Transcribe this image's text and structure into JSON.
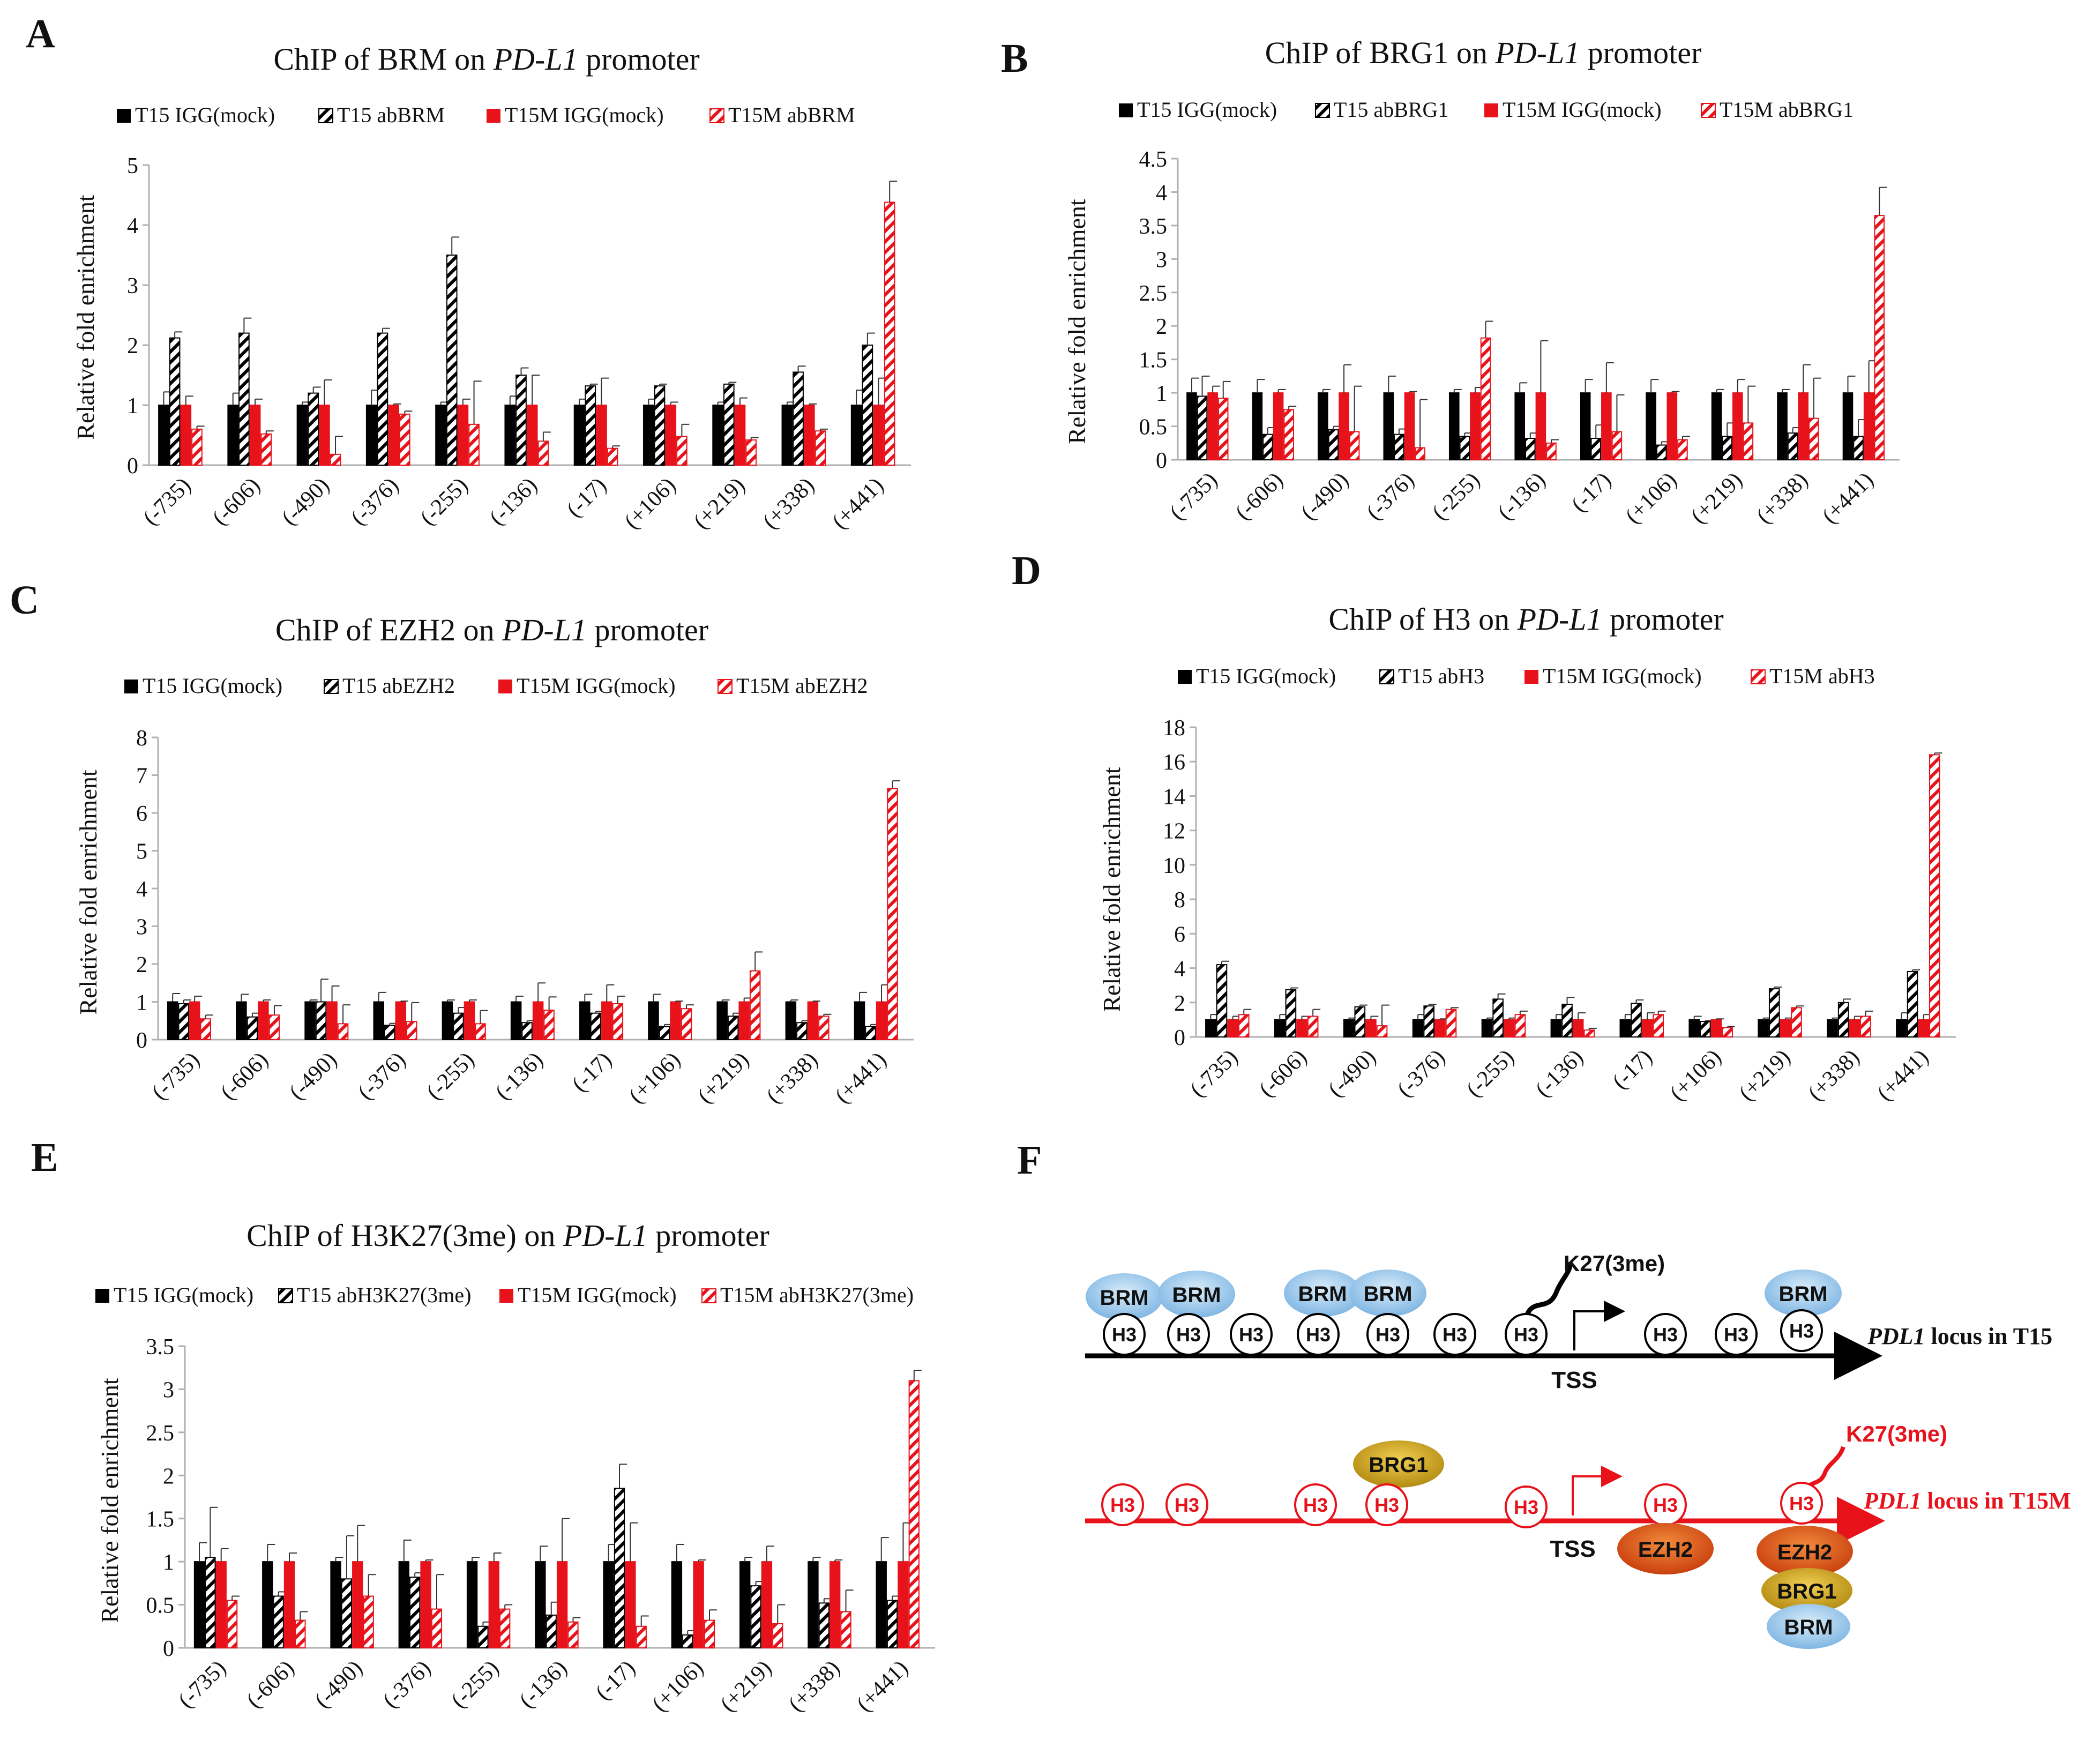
{
  "panels": {
    "A": {
      "letter": "A",
      "title_pre": "ChIP of BRM on ",
      "title_gene": "PD-L1",
      "title_post": " promoter",
      "legend": [
        "T15 IGG(mock)",
        "T15 abBRM",
        "T15M IGG(mock)",
        "T15M abBRM"
      ]
    },
    "B": {
      "letter": "B",
      "title_pre": "ChIP of BRG1  on ",
      "title_gene": "PD-L1",
      "title_post": " promoter",
      "legend": [
        "T15 IGG(mock)",
        "T15 abBRG1",
        "T15M IGG(mock)",
        "T15M abBRG1"
      ]
    },
    "C": {
      "letter": "C",
      "title_pre": "ChIP of EZH2  on ",
      "title_gene": "PD-L1",
      "title_post": " promoter",
      "legend": [
        "T15 IGG(mock)",
        "T15 abEZH2",
        "T15M IGG(mock)",
        "T15M abEZH2"
      ]
    },
    "D": {
      "letter": "D",
      "title_pre": "ChIP of H3 on ",
      "title_gene": "PD-L1",
      "title_post": " promoter",
      "legend": [
        "T15 IGG(mock)",
        "T15 abH3",
        "T15M IGG(mock)",
        "T15M abH3"
      ]
    },
    "E": {
      "letter": "E",
      "title_pre": "ChIP of H3K27(3me)  on ",
      "title_gene": "PD-L1",
      "title_post": " promoter",
      "legend": [
        "T15 IGG(mock)",
        "T15 abH3K27(3me)",
        "T15M IGG(mock)",
        "T15M abH3K27(3me)"
      ]
    },
    "F": {
      "letter": "F"
    }
  },
  "ylabel": "Relative fold enrichment",
  "colors": {
    "black": "#000000",
    "red": "#e8121b",
    "hatch_red": "#e8121b",
    "gray_axis": "#b0b0b0"
  },
  "chart_data": [
    {
      "id": "A",
      "type": "bar",
      "ylim": [
        0,
        5
      ],
      "yticks": [
        0,
        1,
        2,
        3,
        4,
        5
      ],
      "categories": [
        "(-735)",
        "(-606)",
        "(-490)",
        "(-376)",
        "(-255)",
        "(-136)",
        "(-17)",
        "(+106)",
        "(+219)",
        "(+338)",
        "(+441)"
      ],
      "series": [
        {
          "name": "T15 IGG(mock)",
          "values": [
            1,
            1,
            1,
            1,
            1,
            1,
            1,
            1,
            1,
            1,
            1
          ],
          "errors": [
            0.22,
            0.2,
            0.05,
            0.25,
            0.05,
            0.15,
            0.1,
            0.1,
            0.05,
            0.05,
            0.25
          ]
        },
        {
          "name": "T15 abBRM",
          "values": [
            2.12,
            2.2,
            1.2,
            2.2,
            3.5,
            1.5,
            1.32,
            1.32,
            1.35,
            1.55,
            2.0
          ],
          "errors": [
            0.1,
            0.25,
            0.1,
            0.08,
            0.3,
            0.12,
            0.03,
            0.03,
            0.03,
            0.1,
            0.2
          ]
        },
        {
          "name": "T15M IGG(mock)",
          "values": [
            1,
            1,
            1,
            1,
            1,
            1,
            1,
            1,
            1,
            1,
            1
          ],
          "errors": [
            0.15,
            0.1,
            0.42,
            0.02,
            0.1,
            0.5,
            0.45,
            0.05,
            0.12,
            0.02,
            0.45
          ]
        },
        {
          "name": "T15M abBRM",
          "values": [
            0.6,
            0.52,
            0.18,
            0.85,
            0.68,
            0.4,
            0.28,
            0.48,
            0.42,
            0.57,
            4.38
          ],
          "errors": [
            0.05,
            0.05,
            0.3,
            0.05,
            0.72,
            0.15,
            0.04,
            0.2,
            0.04,
            0.03,
            0.35
          ]
        }
      ]
    },
    {
      "id": "B",
      "type": "bar",
      "ylim": [
        0,
        4.5
      ],
      "yticks": [
        0,
        0.5,
        1,
        1.5,
        2,
        2.5,
        3,
        3.5,
        4,
        4.5
      ],
      "categories": [
        "(-735)",
        "(-606)",
        "(-490)",
        "(-376)",
        "(-255)",
        "(-136)",
        "(-17)",
        "(+106)",
        "(+219)",
        "(+338)",
        "(+441)"
      ],
      "series": [
        {
          "name": "T15 IGG(mock)",
          "values": [
            1,
            1,
            1,
            1,
            1,
            1,
            1,
            1,
            1,
            1,
            1
          ],
          "errors": [
            0.22,
            0.2,
            0.05,
            0.25,
            0.05,
            0.15,
            0.2,
            0.2,
            0.05,
            0.05,
            0.25
          ]
        },
        {
          "name": "T15 abBRG1",
          "values": [
            0.95,
            0.38,
            0.45,
            0.38,
            0.35,
            0.32,
            0.32,
            0.22,
            0.35,
            0.4,
            0.35
          ],
          "errors": [
            0.3,
            0.1,
            0.05,
            0.08,
            0.05,
            0.08,
            0.2,
            0.05,
            0.2,
            0.08,
            0.25
          ]
        },
        {
          "name": "T15M IGG(mock)",
          "values": [
            1,
            1,
            1,
            1,
            1,
            1,
            1,
            1,
            1,
            1,
            1
          ],
          "errors": [
            0.1,
            0.05,
            0.42,
            0.02,
            0.08,
            0.78,
            0.45,
            0.02,
            0.2,
            0.42,
            0.48
          ]
        },
        {
          "name": "T15M abBRG1",
          "values": [
            0.92,
            0.75,
            0.42,
            0.18,
            1.82,
            0.25,
            0.42,
            0.3,
            0.55,
            0.62,
            3.65
          ],
          "errors": [
            0.25,
            0.05,
            0.68,
            0.72,
            0.25,
            0.05,
            0.55,
            0.05,
            0.55,
            0.6,
            0.42
          ]
        }
      ]
    },
    {
      "id": "C",
      "type": "bar",
      "ylim": [
        0,
        8
      ],
      "yticks": [
        0,
        1,
        2,
        3,
        4,
        5,
        6,
        7,
        8
      ],
      "categories": [
        "(-735)",
        "(-606)",
        "(-490)",
        "(-376)",
        "(-255)",
        "(-136)",
        "(-17)",
        "(+106)",
        "(+219)",
        "(+338)",
        "(+441)"
      ],
      "series": [
        {
          "name": "T15 IGG(mock)",
          "values": [
            1,
            1,
            1,
            1,
            1,
            1,
            1,
            1,
            1,
            1,
            1
          ],
          "errors": [
            0.22,
            0.2,
            0.05,
            0.25,
            0.05,
            0.15,
            0.2,
            0.2,
            0.05,
            0.05,
            0.25
          ]
        },
        {
          "name": "T15 abEZH2",
          "values": [
            0.95,
            0.6,
            1.0,
            0.38,
            0.7,
            0.45,
            0.7,
            0.35,
            0.62,
            0.45,
            0.35
          ],
          "errors": [
            0.1,
            0.1,
            0.6,
            0.05,
            0.15,
            0.05,
            0.05,
            0.05,
            0.08,
            0.05,
            0.05
          ]
        },
        {
          "name": "T15M IGG(mock)",
          "values": [
            1,
            1,
            1,
            1,
            1,
            1,
            1,
            1,
            1,
            1,
            1
          ],
          "errors": [
            0.15,
            0.05,
            0.42,
            0.02,
            0.05,
            0.5,
            0.45,
            0.02,
            0.1,
            0.02,
            0.45
          ]
        },
        {
          "name": "T15M abEZH2",
          "values": [
            0.55,
            0.65,
            0.42,
            0.48,
            0.42,
            0.78,
            0.95,
            0.82,
            1.82,
            0.62,
            6.65
          ],
          "errors": [
            0.1,
            0.25,
            0.5,
            0.5,
            0.35,
            0.35,
            0.2,
            0.1,
            0.5,
            0.05,
            0.2
          ]
        }
      ]
    },
    {
      "id": "D",
      "type": "bar",
      "ylim": [
        0,
        18
      ],
      "yticks": [
        0,
        2,
        4,
        6,
        8,
        10,
        12,
        14,
        16,
        18
      ],
      "categories": [
        "(-735)",
        "(-606)",
        "(-490)",
        "(-376)",
        "(-255)",
        "(-136)",
        "(-17)",
        "(+106)",
        "(+219)",
        "(+338)",
        "(+441)"
      ],
      "series": [
        {
          "name": "T15 IGG(mock)",
          "values": [
            1,
            1,
            1,
            1,
            1,
            1,
            1,
            1,
            1,
            1,
            1
          ],
          "errors": [
            0.3,
            0.3,
            0.1,
            0.3,
            0.1,
            0.3,
            0.3,
            0.2,
            0.1,
            0.1,
            0.4
          ]
        },
        {
          "name": "T15 abH3",
          "values": [
            4.2,
            2.75,
            1.75,
            1.8,
            2.2,
            1.9,
            1.95,
            0.9,
            2.8,
            2.0,
            3.8
          ],
          "errors": [
            0.2,
            0.1,
            0.1,
            0.1,
            0.3,
            0.4,
            0.2,
            0.05,
            0.1,
            0.2,
            0.1
          ]
        },
        {
          "name": "T15M IGG(mock)",
          "values": [
            1,
            1,
            1,
            1,
            1,
            1,
            1,
            1,
            1,
            1,
            1
          ],
          "errors": [
            0.2,
            0.2,
            0.2,
            0.05,
            0.1,
            0.4,
            0.4,
            0.05,
            0.1,
            0.2,
            0.3
          ]
        },
        {
          "name": "T15M abH3",
          "values": [
            1.3,
            1.2,
            0.65,
            1.6,
            1.3,
            0.4,
            1.3,
            0.55,
            1.7,
            1.2,
            16.4
          ],
          "errors": [
            0.3,
            0.4,
            1.2,
            0.1,
            0.2,
            0.1,
            0.2,
            0.05,
            0.1,
            0.3,
            0.1
          ]
        }
      ]
    },
    {
      "id": "E",
      "type": "bar",
      "ylim": [
        0,
        3.5
      ],
      "yticks": [
        0,
        0.5,
        1,
        1.5,
        2,
        2.5,
        3,
        3.5
      ],
      "categories": [
        "(-735)",
        "(-606)",
        "(-490)",
        "(-376)",
        "(-255)",
        "(-136)",
        "(-17)",
        "(+106)",
        "(+219)",
        "(+338)",
        "(+441)"
      ],
      "series": [
        {
          "name": "T15 IGG(mock)",
          "values": [
            1,
            1,
            1,
            1,
            1,
            1,
            1,
            1,
            1,
            1,
            1
          ],
          "errors": [
            0.22,
            0.2,
            0.05,
            0.25,
            0.05,
            0.18,
            0.2,
            0.2,
            0.05,
            0.05,
            0.28
          ]
        },
        {
          "name": "T15 abH3K27(3me)",
          "values": [
            1.05,
            0.6,
            0.8,
            0.82,
            0.25,
            0.38,
            1.85,
            0.15,
            0.72,
            0.52,
            0.55
          ],
          "errors": [
            0.58,
            0.05,
            0.5,
            0.05,
            0.05,
            0.15,
            0.28,
            0.05,
            0.05,
            0.05,
            0.05
          ]
        },
        {
          "name": "T15M IGG(mock)",
          "values": [
            1,
            1,
            1,
            1,
            1,
            1,
            1,
            1,
            1,
            1,
            1
          ],
          "errors": [
            0.15,
            0.1,
            0.42,
            0.02,
            0.1,
            0.5,
            0.45,
            0.02,
            0.18,
            0.02,
            0.45
          ]
        },
        {
          "name": "T15M abH3K27(3me)",
          "values": [
            0.55,
            0.32,
            0.6,
            0.45,
            0.45,
            0.3,
            0.25,
            0.32,
            0.28,
            0.42,
            3.1
          ],
          "errors": [
            0.05,
            0.1,
            0.25,
            0.4,
            0.05,
            0.05,
            0.12,
            0.12,
            0.22,
            0.25,
            0.12
          ]
        }
      ]
    }
  ],
  "diagram": {
    "t15": {
      "label_gene": "PDL1",
      "label_rest": " locus in T15",
      "tss": "TSS",
      "k27": "K27(3me)",
      "h3": [
        "H3",
        "H3",
        "H3",
        "H3",
        "H3",
        "H3",
        "H3",
        "H3",
        "H3",
        "H3"
      ],
      "brm": [
        "BRM",
        "BRM",
        "BRM",
        "BRM",
        "BRM"
      ]
    },
    "t15m": {
      "label_gene": "PDL1",
      "label_rest": " locus in T15M",
      "tss": "TSS",
      "k27": "K27(3me)",
      "h3": [
        "H3",
        "H3",
        "H3",
        "H3",
        "H3",
        "H3",
        "H3"
      ],
      "brg1_top": "BRG1",
      "ezh2_mid": "EZH2",
      "ezh2_right": "EZH2",
      "brg1_right": "BRG1",
      "brm_right": "BRM"
    }
  }
}
